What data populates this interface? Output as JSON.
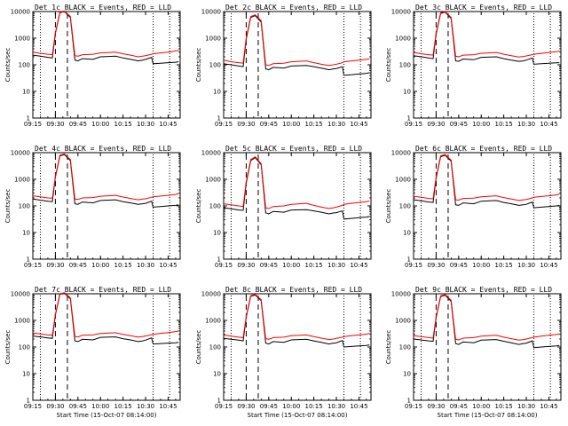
{
  "figure": {
    "ylabel": "Counts/sec",
    "xlabel": "Start Time (15-Oct-07 08:14:00)",
    "xticks": [
      "09:15",
      "09:30",
      "09:45",
      "10:00",
      "10:15",
      "10:30",
      "10:45"
    ],
    "yticks": [
      "1",
      "10",
      "100",
      "1000",
      "10000"
    ],
    "colors": {
      "events": "#000000",
      "lld": "#ff0000",
      "axes": "#000000"
    }
  },
  "chart_data": [
    {
      "type": "line",
      "title": "Det 1c BLACK = Events, RED = LLD",
      "xlim": [
        "09:15",
        "10:53"
      ],
      "ylim": [
        1,
        10000
      ],
      "yscale": "log",
      "x": [
        "09:15",
        "09:20",
        "09:25",
        "09:28",
        "09:30",
        "09:33",
        "09:36",
        "09:40",
        "09:43",
        "09:45",
        "09:48",
        "09:55",
        "10:00",
        "10:10",
        "10:15",
        "10:20",
        "10:25",
        "10:28",
        "10:30",
        "10:34",
        "10:35",
        "10:40",
        "10:45",
        "10:50",
        "10:52"
      ],
      "series": [
        {
          "name": "BLACK = Events",
          "values": [
            230,
            210,
            190,
            180,
            1500,
            9000,
            10000,
            6000,
            150,
            140,
            170,
            160,
            200,
            210,
            180,
            160,
            140,
            150,
            160,
            190,
            110,
            115,
            120,
            125,
            130
          ]
        },
        {
          "name": "RED = LLD",
          "values": [
            300,
            270,
            250,
            240,
            1600,
            9500,
            10500,
            6500,
            220,
            210,
            240,
            250,
            280,
            300,
            260,
            230,
            200,
            210,
            220,
            250,
            260,
            280,
            300,
            330,
            350
          ]
        }
      ],
      "annotations": {
        "dashed_vertical": [
          "09:30",
          "09:38"
        ],
        "dotted_vertical": [
          "09:20",
          "10:35",
          "10:46"
        ]
      }
    },
    {
      "type": "line",
      "title": "Det 2c BLACK = Events, RED = LLD",
      "xlim": [
        "09:15",
        "10:53"
      ],
      "ylim": [
        1,
        10000
      ],
      "yscale": "log",
      "x": [
        "09:15",
        "09:20",
        "09:25",
        "09:28",
        "09:30",
        "09:33",
        "09:36",
        "09:40",
        "09:43",
        "09:45",
        "09:48",
        "09:55",
        "10:00",
        "10:10",
        "10:15",
        "10:20",
        "10:25",
        "10:28",
        "10:30",
        "10:34",
        "10:35",
        "10:40",
        "10:45",
        "10:50",
        "10:52"
      ],
      "series": [
        {
          "name": "BLACK = Events",
          "values": [
            110,
            100,
            90,
            85,
            900,
            6000,
            7000,
            4000,
            70,
            65,
            80,
            75,
            90,
            95,
            85,
            75,
            65,
            70,
            72,
            85,
            40,
            42,
            45,
            48,
            50
          ]
        },
        {
          "name": "RED = LLD",
          "values": [
            150,
            130,
            120,
            115,
            1000,
            6500,
            7500,
            4500,
            100,
            95,
            110,
            115,
            130,
            140,
            120,
            105,
            95,
            100,
            105,
            120,
            130,
            140,
            150,
            160,
            170
          ]
        }
      ],
      "annotations": {
        "dashed_vertical": [
          "09:30",
          "09:38"
        ],
        "dotted_vertical": [
          "09:20",
          "10:35",
          "10:46"
        ]
      }
    },
    {
      "type": "line",
      "title": "Det 3c BLACK = Events, RED = LLD",
      "xlim": [
        "09:15",
        "10:53"
      ],
      "ylim": [
        1,
        10000
      ],
      "yscale": "log",
      "x": [
        "09:15",
        "09:20",
        "09:25",
        "09:28",
        "09:30",
        "09:33",
        "09:36",
        "09:40",
        "09:43",
        "09:45",
        "09:48",
        "09:55",
        "10:00",
        "10:10",
        "10:15",
        "10:20",
        "10:25",
        "10:28",
        "10:30",
        "10:34",
        "10:35",
        "10:40",
        "10:45",
        "10:50",
        "10:52"
      ],
      "series": [
        {
          "name": "BLACK = Events",
          "values": [
            220,
            200,
            180,
            170,
            1400,
            8500,
            9500,
            5500,
            140,
            135,
            165,
            155,
            190,
            200,
            170,
            150,
            135,
            140,
            150,
            180,
            105,
            110,
            115,
            118,
            120
          ]
        },
        {
          "name": "RED = LLD",
          "values": [
            290,
            260,
            240,
            230,
            1550,
            9000,
            10000,
            6000,
            210,
            200,
            230,
            240,
            270,
            290,
            250,
            220,
            195,
            205,
            215,
            240,
            250,
            270,
            290,
            310,
            330
          ]
        }
      ],
      "annotations": {
        "dashed_vertical": [
          "09:30",
          "09:38"
        ],
        "dotted_vertical": [
          "09:20",
          "10:35",
          "10:46"
        ]
      }
    },
    {
      "type": "line",
      "title": "Det 4c BLACK = Events, RED = LLD",
      "xlim": [
        "09:15",
        "10:53"
      ],
      "ylim": [
        1,
        10000
      ],
      "yscale": "log",
      "x": [
        "09:15",
        "09:20",
        "09:25",
        "09:28",
        "09:30",
        "09:33",
        "09:36",
        "09:40",
        "09:43",
        "09:45",
        "09:48",
        "09:55",
        "10:00",
        "10:10",
        "10:15",
        "10:20",
        "10:25",
        "10:28",
        "10:30",
        "10:34",
        "10:35",
        "10:40",
        "10:45",
        "10:50",
        "10:52"
      ],
      "series": [
        {
          "name": "BLACK = Events",
          "values": [
            180,
            165,
            150,
            145,
            1200,
            7500,
            8500,
            5000,
            120,
            115,
            140,
            130,
            160,
            170,
            145,
            130,
            115,
            120,
            125,
            150,
            90,
            95,
            100,
            105,
            110
          ]
        },
        {
          "name": "RED = LLD",
          "values": [
            240,
            220,
            200,
            195,
            1300,
            8000,
            9000,
            5500,
            180,
            175,
            200,
            205,
            230,
            250,
            215,
            190,
            170,
            180,
            185,
            210,
            220,
            235,
            250,
            270,
            290
          ]
        }
      ],
      "annotations": {
        "dashed_vertical": [
          "09:30",
          "09:38"
        ],
        "dotted_vertical": [
          "09:20",
          "10:35",
          "10:46"
        ]
      }
    },
    {
      "type": "line",
      "title": "Det 5c BLACK = Events, RED = LLD",
      "xlim": [
        "09:15",
        "10:53"
      ],
      "ylim": [
        1,
        10000
      ],
      "yscale": "log",
      "x": [
        "09:15",
        "09:20",
        "09:25",
        "09:28",
        "09:30",
        "09:33",
        "09:36",
        "09:40",
        "09:43",
        "09:45",
        "09:48",
        "09:55",
        "10:00",
        "10:10",
        "10:15",
        "10:20",
        "10:25",
        "10:28",
        "10:30",
        "10:34",
        "10:35",
        "10:40",
        "10:45",
        "10:50",
        "10:52"
      ],
      "series": [
        {
          "name": "BLACK = Events",
          "values": [
            85,
            78,
            70,
            68,
            700,
            5000,
            6500,
            3500,
            55,
            50,
            62,
            58,
            70,
            72,
            65,
            58,
            50,
            54,
            56,
            65,
            32,
            34,
            36,
            38,
            40
          ]
        },
        {
          "name": "RED = LLD",
          "values": [
            120,
            110,
            100,
            95,
            800,
            5500,
            7000,
            3800,
            85,
            80,
            95,
            100,
            115,
            125,
            105,
            90,
            80,
            85,
            90,
            105,
            115,
            125,
            135,
            145,
            155
          ]
        }
      ],
      "annotations": {
        "dashed_vertical": [
          "09:30",
          "09:38"
        ],
        "dotted_vertical": [
          "09:20",
          "10:35",
          "10:46"
        ]
      }
    },
    {
      "type": "line",
      "title": "Det 6c BLACK = Events, RED = LLD",
      "xlim": [
        "09:15",
        "10:53"
      ],
      "ylim": [
        1,
        10000
      ],
      "yscale": "log",
      "x": [
        "09:15",
        "09:20",
        "09:25",
        "09:28",
        "09:30",
        "09:33",
        "09:36",
        "09:40",
        "09:43",
        "09:45",
        "09:48",
        "09:55",
        "10:00",
        "10:10",
        "10:15",
        "10:20",
        "10:25",
        "10:28",
        "10:30",
        "10:34",
        "10:35",
        "10:40",
        "10:45",
        "10:50",
        "10:52"
      ],
      "series": [
        {
          "name": "BLACK = Events",
          "values": [
            170,
            155,
            140,
            135,
            1100,
            7000,
            8000,
            4800,
            110,
            105,
            130,
            120,
            150,
            160,
            135,
            120,
            105,
            110,
            115,
            140,
            85,
            90,
            95,
            100,
            105
          ]
        },
        {
          "name": "RED = LLD",
          "values": [
            230,
            210,
            190,
            185,
            1200,
            7500,
            8500,
            5200,
            170,
            165,
            190,
            195,
            220,
            240,
            205,
            180,
            160,
            170,
            175,
            200,
            210,
            225,
            240,
            260,
            280
          ]
        }
      ],
      "annotations": {
        "dashed_vertical": [
          "09:30",
          "09:38"
        ],
        "dotted_vertical": [
          "09:20",
          "10:35",
          "10:46"
        ]
      }
    },
    {
      "type": "line",
      "title": "Det 7c BLACK = Events, RED = LLD",
      "xlim": [
        "09:15",
        "10:53"
      ],
      "ylim": [
        1,
        10000
      ],
      "yscale": "log",
      "x": [
        "09:15",
        "09:20",
        "09:25",
        "09:28",
        "09:30",
        "09:33",
        "09:36",
        "09:40",
        "09:43",
        "09:45",
        "09:48",
        "09:55",
        "10:00",
        "10:10",
        "10:15",
        "10:20",
        "10:25",
        "10:28",
        "10:30",
        "10:34",
        "10:35",
        "10:40",
        "10:45",
        "10:50",
        "10:52"
      ],
      "series": [
        {
          "name": "BLACK = Events",
          "values": [
            260,
            240,
            220,
            210,
            1600,
            9500,
            10500,
            6500,
            170,
            160,
            195,
            185,
            230,
            240,
            205,
            185,
            160,
            170,
            180,
            220,
            130,
            135,
            140,
            145,
            150
          ]
        },
        {
          "name": "RED = LLD",
          "values": [
            340,
            310,
            285,
            275,
            1700,
            10000,
            11000,
            7000,
            250,
            240,
            275,
            285,
            320,
            345,
            300,
            265,
            235,
            250,
            260,
            290,
            300,
            325,
            350,
            380,
            400
          ]
        }
      ],
      "annotations": {
        "dashed_vertical": [
          "09:30",
          "09:38"
        ],
        "dotted_vertical": [
          "09:20",
          "10:35",
          "10:46"
        ]
      }
    },
    {
      "type": "line",
      "title": "Det 8c BLACK = Events, RED = LLD",
      "xlim": [
        "09:15",
        "10:53"
      ],
      "ylim": [
        1,
        10000
      ],
      "yscale": "log",
      "x": [
        "09:15",
        "09:20",
        "09:25",
        "09:28",
        "09:30",
        "09:33",
        "09:36",
        "09:40",
        "09:43",
        "09:45",
        "09:48",
        "09:55",
        "10:00",
        "10:10",
        "10:15",
        "10:20",
        "10:25",
        "10:28",
        "10:30",
        "10:34",
        "10:35",
        "10:40",
        "10:45",
        "10:50",
        "10:52"
      ],
      "series": [
        {
          "name": "BLACK = Events",
          "values": [
            210,
            195,
            180,
            170,
            1300,
            8000,
            9000,
            5500,
            140,
            130,
            160,
            150,
            185,
            195,
            170,
            150,
            130,
            140,
            145,
            175,
            100,
            105,
            110,
            115,
            120
          ]
        },
        {
          "name": "RED = LLD",
          "values": [
            280,
            255,
            235,
            225,
            1400,
            8500,
            9500,
            6000,
            205,
            195,
            225,
            235,
            265,
            285,
            245,
            215,
            190,
            200,
            210,
            235,
            245,
            265,
            285,
            305,
            325
          ]
        }
      ],
      "annotations": {
        "dashed_vertical": [
          "09:30",
          "09:38"
        ],
        "dotted_vertical": [
          "09:20",
          "10:35",
          "10:46"
        ]
      }
    },
    {
      "type": "line",
      "title": "Det 9c BLACK = Events, RED = LLD",
      "xlim": [
        "09:15",
        "10:53"
      ],
      "ylim": [
        1,
        10000
      ],
      "yscale": "log",
      "x": [
        "09:15",
        "09:20",
        "09:25",
        "09:28",
        "09:30",
        "09:33",
        "09:36",
        "09:40",
        "09:43",
        "09:45",
        "09:48",
        "09:55",
        "10:00",
        "10:10",
        "10:15",
        "10:20",
        "10:25",
        "10:28",
        "10:30",
        "10:34",
        "10:35",
        "10:40",
        "10:45",
        "10:50",
        "10:52"
      ],
      "series": [
        {
          "name": "BLACK = Events",
          "values": [
            200,
            185,
            170,
            165,
            1250,
            7800,
            8800,
            5200,
            135,
            125,
            155,
            145,
            180,
            190,
            165,
            145,
            125,
            135,
            140,
            170,
            95,
            100,
            105,
            110,
            115
          ]
        },
        {
          "name": "RED = LLD",
          "values": [
            265,
            245,
            225,
            215,
            1350,
            8300,
            9300,
            5700,
            195,
            185,
            215,
            225,
            255,
            275,
            235,
            205,
            180,
            190,
            200,
            225,
            235,
            255,
            275,
            295,
            315
          ]
        }
      ],
      "annotations": {
        "dashed_vertical": [
          "09:30",
          "09:38"
        ],
        "dotted_vertical": [
          "09:20",
          "10:35",
          "10:46"
        ]
      }
    }
  ]
}
